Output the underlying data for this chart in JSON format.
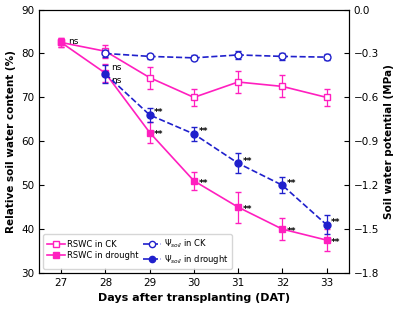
{
  "days": [
    27,
    28,
    29,
    30,
    31,
    32,
    33
  ],
  "rswc_ck": [
    82.5,
    80.5,
    74.5,
    70.0,
    73.5,
    72.5,
    70.0
  ],
  "rswc_ck_err": [
    1.0,
    1.5,
    2.5,
    2.0,
    2.5,
    2.5,
    2.0
  ],
  "rswc_drought": [
    82.5,
    75.5,
    62.0,
    51.0,
    45.0,
    40.0,
    37.5
  ],
  "rswc_drought_err": [
    1.0,
    2.0,
    2.5,
    2.0,
    3.5,
    2.5,
    2.5
  ],
  "psi_ck_mpa": [
    null,
    -0.3,
    -0.32,
    -0.33,
    -0.31,
    -0.32,
    -0.325
  ],
  "psi_ck_mpa_err": [
    null,
    0.025,
    0.018,
    0.018,
    0.025,
    0.025,
    0.018
  ],
  "psi_drought_mpa": [
    null,
    -0.44,
    -0.72,
    -0.85,
    -1.05,
    -1.2,
    -1.47
  ],
  "psi_drought_mpa_err": [
    null,
    0.06,
    0.05,
    0.05,
    0.07,
    0.055,
    0.065
  ],
  "ylim_left": [
    30,
    90
  ],
  "ylim_right": [
    -1.8,
    0.0
  ],
  "yticks_left": [
    30,
    40,
    50,
    60,
    70,
    80,
    90
  ],
  "yticks_right": [
    -1.8,
    -1.5,
    -1.2,
    -0.9,
    -0.6,
    -0.3,
    0.0
  ],
  "color_pink": "#FF1FBF",
  "color_blue": "#2020CC",
  "xlabel": "Days after transplanting (DAT)",
  "ylabel_left": "Relative soil water content (%)",
  "ylabel_right": "Soil water potential (MPa)",
  "figsize": [
    4.0,
    3.09
  ],
  "dpi": 100,
  "rswc_drought_ann_days": [
    29,
    30,
    31,
    32,
    33
  ],
  "rswc_drought_ann_vals": [
    62.0,
    51.0,
    45.0,
    40.0,
    37.5
  ],
  "psi_drought_ann_days": [
    29,
    30,
    31,
    32,
    33
  ],
  "psi_drought_ann_mpa": [
    -0.72,
    -0.85,
    -1.05,
    -1.2,
    -1.47
  ]
}
